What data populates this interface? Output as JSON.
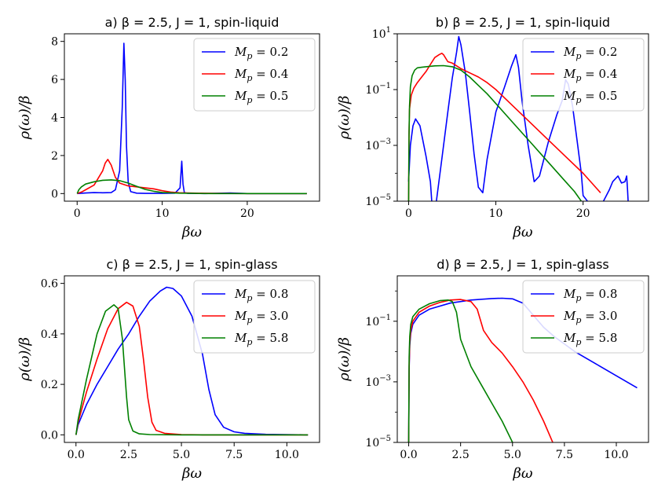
{
  "chart_data": [
    {
      "type": "line",
      "title": "a) β = 2.5, J = 1, spin-liquid",
      "xlabel": "βω",
      "ylabel": "ρ(ω)/β",
      "yscale": "linear",
      "xlim": [
        -1.5,
        28.5
      ],
      "ylim": [
        -0.4,
        8.4
      ],
      "xticks": [
        0,
        10,
        20
      ],
      "xtick_labels": [
        "0",
        "10",
        "20"
      ],
      "yticks": [
        0,
        2,
        4,
        6,
        8
      ],
      "ytick_labels": [
        "0",
        "2",
        "4",
        "6",
        "8"
      ],
      "legend_position": "top-right",
      "series": [
        {
          "name": "M_p = 0.2",
          "legend_main": "M",
          "legend_sub": "p",
          "legend_value": " = 0.2",
          "color": "#0000ff",
          "x": [
            0,
            1,
            2,
            3,
            4,
            4.5,
            5,
            5.3,
            5.5,
            5.65,
            5.8,
            6,
            6.3,
            7,
            8,
            10,
            11.5,
            12.1,
            12.3,
            12.45,
            12.6,
            13,
            15,
            18,
            20,
            25,
            27
          ],
          "y": [
            0,
            0.03,
            0.05,
            0.04,
            0.05,
            0.2,
            1.2,
            4.5,
            7.9,
            6.0,
            2.5,
            0.6,
            0.1,
            0.02,
            0.01,
            0.01,
            0.02,
            0.3,
            1.7,
            0.5,
            0.05,
            0.01,
            0,
            0.03,
            0,
            0,
            0
          ]
        },
        {
          "name": "M_p = 0.4",
          "legend_main": "M",
          "legend_sub": "p",
          "legend_value": " = 0.4",
          "color": "#ff0000",
          "x": [
            0,
            0.5,
            1,
            2,
            3,
            3.3,
            3.6,
            4,
            4.5,
            5,
            6,
            7,
            8,
            9,
            10,
            11,
            12,
            14,
            16,
            20,
            27
          ],
          "y": [
            0,
            0.08,
            0.2,
            0.45,
            1.2,
            1.6,
            1.8,
            1.5,
            0.85,
            0.55,
            0.4,
            0.35,
            0.3,
            0.25,
            0.15,
            0.08,
            0.04,
            0.02,
            0.01,
            0,
            0
          ]
        },
        {
          "name": "M_p = 0.5",
          "legend_main": "M",
          "legend_sub": "p",
          "legend_value": " = 0.5",
          "color": "#008000",
          "x": [
            0,
            0.2,
            0.5,
            1,
            2,
            3,
            4,
            5,
            6,
            7,
            8,
            9,
            10,
            12,
            14,
            16,
            18,
            20,
            27
          ],
          "y": [
            0,
            0.2,
            0.35,
            0.5,
            0.62,
            0.7,
            0.72,
            0.68,
            0.55,
            0.38,
            0.22,
            0.12,
            0.06,
            0.02,
            0.01,
            0,
            0,
            0,
            0
          ]
        }
      ]
    },
    {
      "type": "line",
      "title": "b) β = 2.5, J = 1, spin-liquid",
      "xlabel": "βω",
      "ylabel": "ρ(ω)/β",
      "yscale": "log",
      "xlim": [
        -1.3,
        27.5
      ],
      "ylim_exp": [
        -5,
        1
      ],
      "xticks": [
        0,
        10,
        20
      ],
      "xtick_labels": [
        "0",
        "10",
        "20"
      ],
      "yticks_exp": [
        -5,
        -3,
        -1,
        1
      ],
      "ytick_base": "10",
      "ytick_exponents": [
        "−5",
        "−3",
        "−1",
        "1"
      ],
      "legend_position": "top-right",
      "series": [
        {
          "name": "M_p = 0.2",
          "legend_main": "M",
          "legend_sub": "p",
          "legend_value": " = 0.2",
          "color": "#0000ff",
          "x": [
            0,
            0.2,
            0.5,
            0.8,
            1.3,
            2,
            2.5,
            2.7,
            3.1,
            3.8,
            4.5,
            5,
            5.5,
            5.75,
            6,
            6.5,
            7,
            7.5,
            8,
            8.5,
            9,
            10,
            11,
            11.8,
            12.3,
            12.6,
            13,
            13.7,
            14.4,
            15,
            16,
            17,
            17.6,
            18,
            18.3,
            18.8,
            19.3,
            19.8,
            20,
            21,
            22,
            23,
            23.4,
            24,
            24.4,
            24.8,
            25,
            25.1,
            25.2
          ],
          "y": [
            -4.3,
            -3,
            -2.3,
            -2.05,
            -2.3,
            -3.4,
            -4.3,
            -5.2,
            -5.2,
            -3.5,
            -1.8,
            -0.6,
            0.35,
            0.9,
            0.6,
            -0.4,
            -1.8,
            -3.3,
            -4.5,
            -4.7,
            -3.5,
            -1.8,
            -0.9,
            -0.15,
            0.25,
            -0.2,
            -1.4,
            -3.0,
            -4.3,
            -4.1,
            -2.9,
            -1.9,
            -1.4,
            -0.65,
            -0.8,
            -1.6,
            -2.8,
            -4.0,
            -4.8,
            -5.2,
            -5.2,
            -4.6,
            -4.3,
            -4.1,
            -4.35,
            -4.3,
            -4.1,
            -4.6,
            -5.2
          ]
        },
        {
          "name": "M_p = 0.4",
          "legend_main": "M",
          "legend_sub": "p",
          "legend_value": " = 0.4",
          "color": "#ff0000",
          "x": [
            0,
            0.05,
            0.1,
            0.3,
            0.6,
            1,
            1.5,
            2,
            2.5,
            3,
            3.5,
            3.8,
            4,
            4.5,
            5,
            5.5,
            6,
            7,
            8,
            9,
            10,
            12,
            14,
            16,
            18,
            20,
            21,
            22
          ],
          "y": [
            -5.2,
            -2.5,
            -1.7,
            -1.2,
            -0.95,
            -0.75,
            -0.55,
            -0.35,
            -0.1,
            0.15,
            0.25,
            0.3,
            0.25,
            0.0,
            -0.05,
            -0.15,
            -0.25,
            -0.4,
            -0.55,
            -0.75,
            -1.0,
            -1.6,
            -2.2,
            -2.8,
            -3.4,
            -4.0,
            -4.35,
            -4.7
          ]
        },
        {
          "name": "M_p = 0.5",
          "legend_main": "M",
          "legend_sub": "p",
          "legend_value": " = 0.5",
          "color": "#008000",
          "x": [
            0,
            0.05,
            0.1,
            0.2,
            0.4,
            0.7,
            1,
            1.5,
            2,
            3,
            4,
            5,
            6,
            7,
            8,
            9,
            10,
            12,
            14,
            16,
            18,
            19,
            19.8
          ],
          "y": [
            -5.2,
            -2.6,
            -1.6,
            -0.9,
            -0.5,
            -0.3,
            -0.22,
            -0.2,
            -0.18,
            -0.15,
            -0.14,
            -0.18,
            -0.3,
            -0.55,
            -0.85,
            -1.15,
            -1.5,
            -2.2,
            -2.9,
            -3.6,
            -4.3,
            -4.65,
            -5.0
          ]
        }
      ]
    },
    {
      "type": "line",
      "title": "c) β = 2.5, J = 1, spin-glass",
      "xlabel": "βω",
      "ylabel": "ρ(ω)/β",
      "yscale": "linear",
      "xlim": [
        -0.55,
        11.55
      ],
      "ylim": [
        -0.03,
        0.63
      ],
      "xticks": [
        0,
        2.5,
        5,
        7.5,
        10
      ],
      "xtick_labels": [
        "0.0",
        "2.5",
        "5.0",
        "7.5",
        "10.0"
      ],
      "yticks": [
        0,
        0.2,
        0.4,
        0.6
      ],
      "ytick_labels": [
        "0.0",
        "0.2",
        "0.4",
        "0.6"
      ],
      "legend_position": "top-right",
      "series": [
        {
          "name": "M_p = 0.8",
          "legend_main": "M",
          "legend_sub": "p",
          "legend_value": " = 0.8",
          "color": "#0000ff",
          "x": [
            0,
            0.1,
            0.5,
            1,
            1.5,
            2,
            2.5,
            3,
            3.5,
            4,
            4.3,
            4.6,
            5,
            5.5,
            6,
            6.3,
            6.6,
            7,
            7.5,
            8,
            9,
            10,
            11
          ],
          "y": [
            0,
            0.04,
            0.12,
            0.2,
            0.27,
            0.34,
            0.4,
            0.47,
            0.53,
            0.57,
            0.585,
            0.58,
            0.55,
            0.47,
            0.32,
            0.18,
            0.08,
            0.03,
            0.012,
            0.006,
            0.002,
            0.001,
            0
          ]
        },
        {
          "name": "M_p = 3.0",
          "legend_main": "M",
          "legend_sub": "p",
          "legend_value": " = 3.0",
          "color": "#ff0000",
          "x": [
            0,
            0.1,
            0.5,
            1,
            1.5,
            2,
            2.4,
            2.7,
            3.0,
            3.2,
            3.4,
            3.6,
            3.8,
            4.2,
            5,
            6,
            11
          ],
          "y": [
            0,
            0.05,
            0.17,
            0.3,
            0.42,
            0.5,
            0.525,
            0.51,
            0.43,
            0.3,
            0.15,
            0.05,
            0.018,
            0.006,
            0.001,
            0,
            0
          ]
        },
        {
          "name": "M_p = 5.8",
          "legend_main": "M",
          "legend_sub": "p",
          "legend_value": " = 5.8",
          "color": "#008000",
          "x": [
            0,
            0.1,
            0.5,
            1,
            1.4,
            1.8,
            2.0,
            2.2,
            2.4,
            2.5,
            2.7,
            3.0,
            3.5,
            5,
            11
          ],
          "y": [
            0,
            0.06,
            0.22,
            0.4,
            0.49,
            0.515,
            0.5,
            0.38,
            0.15,
            0.06,
            0.015,
            0.004,
            0.001,
            0,
            0
          ]
        }
      ]
    },
    {
      "type": "line",
      "title": "d) β = 2.5, J = 1, spin-glass",
      "xlabel": "βω",
      "ylabel": "ρ(ω)/β",
      "yscale": "log",
      "xlim": [
        -0.55,
        11.55
      ],
      "ylim_exp": [
        -5,
        0.5
      ],
      "xticks": [
        0,
        2.5,
        5,
        7.5,
        10
      ],
      "xtick_labels": [
        "0.0",
        "2.5",
        "5.0",
        "7.5",
        "10.0"
      ],
      "yticks_exp": [
        -5,
        -3,
        -1
      ],
      "ytick_base": "10",
      "ytick_exponents": [
        "−5",
        "−3",
        "−1"
      ],
      "legend_position": "top-right",
      "series": [
        {
          "name": "M_p = 0.8",
          "legend_main": "M",
          "legend_sub": "p",
          "legend_value": " = 0.8",
          "color": "#0000ff",
          "x": [
            0,
            0.02,
            0.05,
            0.1,
            0.2,
            0.5,
            1,
            2,
            3,
            4,
            4.5,
            5,
            5.5,
            6,
            6.5,
            7,
            8,
            9,
            10,
            11
          ],
          "y": [
            -5.2,
            -2.6,
            -1.8,
            -1.4,
            -1.1,
            -0.8,
            -0.6,
            -0.4,
            -0.3,
            -0.25,
            -0.24,
            -0.26,
            -0.4,
            -0.8,
            -1.2,
            -1.5,
            -2.0,
            -2.4,
            -2.8,
            -3.2
          ]
        },
        {
          "name": "M_p = 3.0",
          "legend_main": "M",
          "legend_sub": "p",
          "legend_value": " = 3.0",
          "color": "#ff0000",
          "x": [
            0,
            0.02,
            0.05,
            0.1,
            0.2,
            0.5,
            1,
            1.5,
            2,
            2.5,
            3,
            3.3,
            3.6,
            4,
            4.5,
            5,
            5.5,
            6,
            6.5,
            7
          ],
          "y": [
            -5.2,
            -2.5,
            -1.7,
            -1.3,
            -1.0,
            -0.7,
            -0.5,
            -0.38,
            -0.3,
            -0.28,
            -0.35,
            -0.6,
            -1.3,
            -1.7,
            -2.05,
            -2.5,
            -3.0,
            -3.6,
            -4.3,
            -5.1
          ]
        },
        {
          "name": "M_p = 5.8",
          "legend_main": "M",
          "legend_sub": "p",
          "legend_value": " = 5.8",
          "color": "#008000",
          "x": [
            0,
            0.02,
            0.05,
            0.1,
            0.2,
            0.5,
            1,
            1.5,
            1.9,
            2.1,
            2.3,
            2.5,
            3,
            3.5,
            4,
            4.5,
            5
          ],
          "y": [
            -5.2,
            -2.2,
            -1.5,
            -1.1,
            -0.85,
            -0.6,
            -0.42,
            -0.32,
            -0.3,
            -0.35,
            -0.7,
            -1.6,
            -2.5,
            -3.1,
            -3.7,
            -4.3,
            -5.0
          ]
        }
      ]
    }
  ]
}
